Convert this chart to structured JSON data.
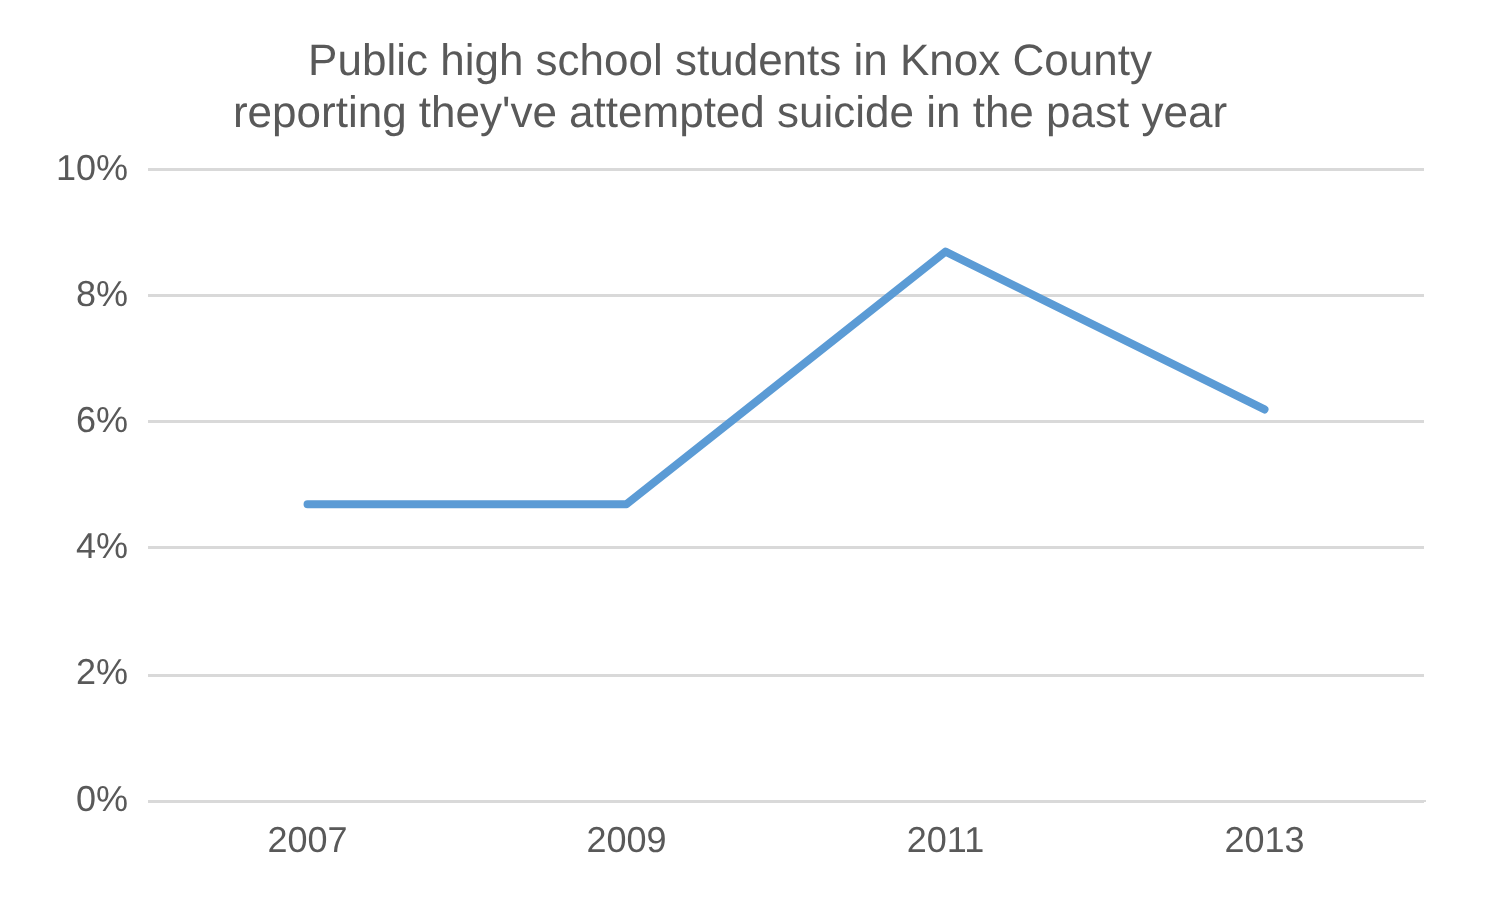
{
  "chart_data": {
    "type": "line",
    "title": "Public high school students in Knox County reporting they've attempted suicide in the past year",
    "categories": [
      "2007",
      "2009",
      "2011",
      "2013"
    ],
    "series": [
      {
        "color": "#5b9bd5",
        "values": [
          4.7,
          4.7,
          8.7,
          6.2
        ]
      }
    ],
    "ylim": [
      0,
      10
    ],
    "yticks": [
      {
        "value": 0,
        "label": "0%"
      },
      {
        "value": 2,
        "label": "2%"
      },
      {
        "value": 4,
        "label": "4%"
      },
      {
        "value": 6,
        "label": "6%"
      },
      {
        "value": 8,
        "label": "8%"
      },
      {
        "value": 10,
        "label": "10%"
      }
    ],
    "grid": "y",
    "legend": false,
    "marker": "none",
    "line_style": "solid"
  }
}
